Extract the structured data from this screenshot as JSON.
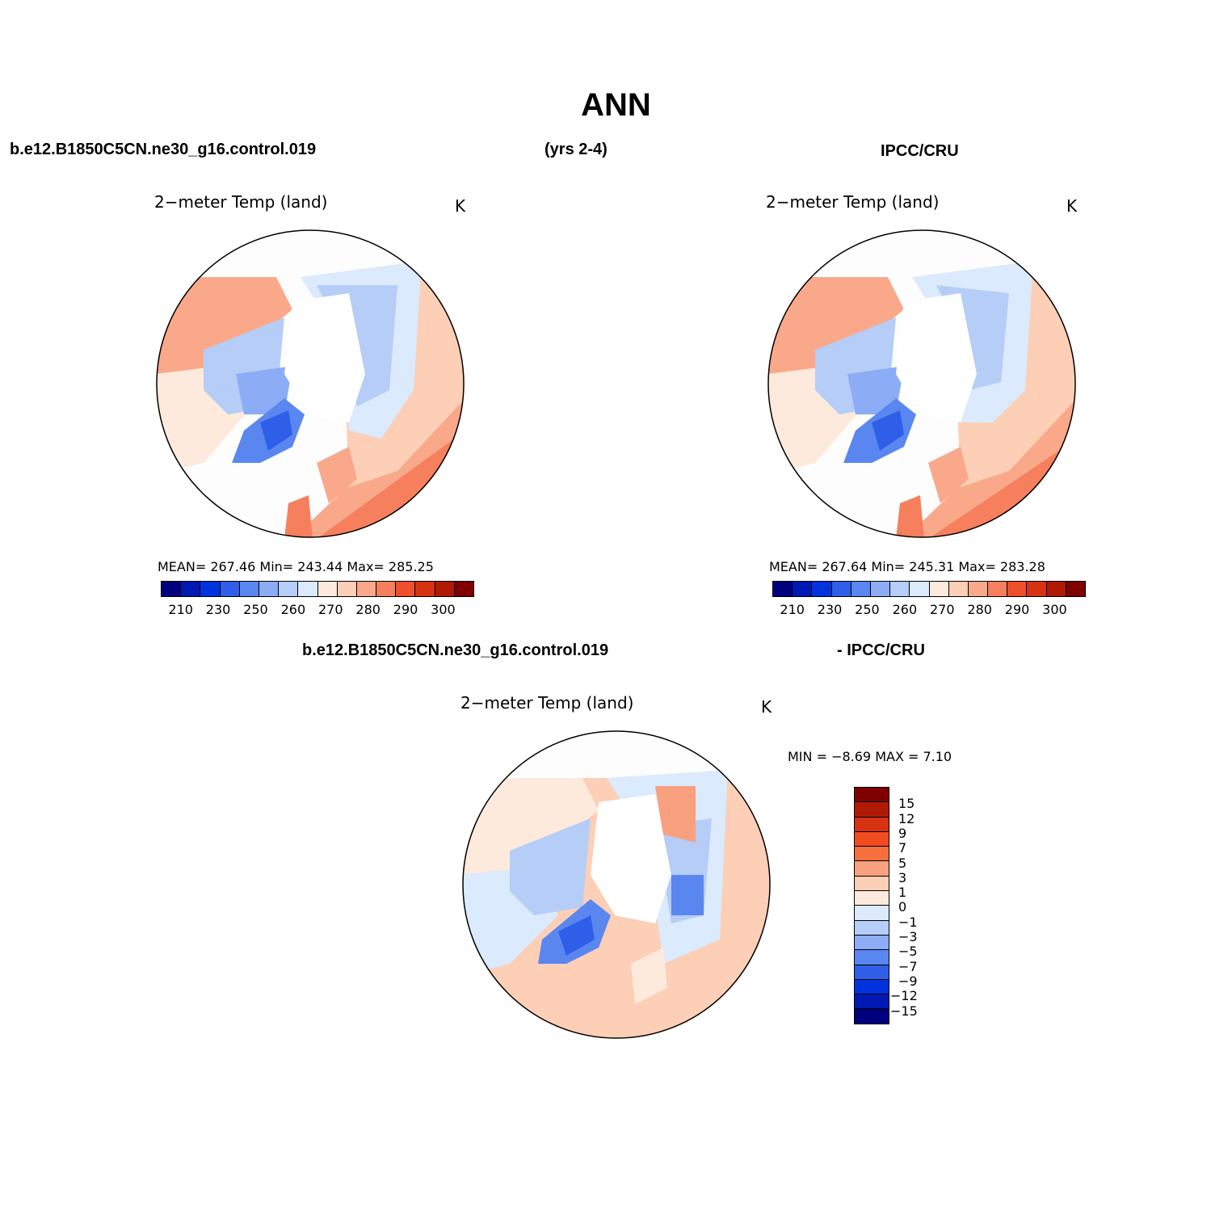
{
  "figure": {
    "title": "ANN",
    "top_left": "b.e12.B1850C5CN.ne30_g16.control.019",
    "top_center": "(yrs 2-4)",
    "top_right": "IPCC/CRU",
    "bottom_left": "b.e12.B1850C5CN.ne30_g16.control.019",
    "bottom_right": "- IPCC/CRU"
  },
  "panels": [
    {
      "id": "model",
      "title": "2−meter Temp (land)",
      "units": "K",
      "stats": "MEAN=  267.46    Min=  243.44    Max=  285.25"
    },
    {
      "id": "obs",
      "title": "2−meter Temp (land)",
      "units": "K",
      "stats": "MEAN=  267.64    Min=  245.31    Max=  283.28"
    },
    {
      "id": "diff",
      "title": "2−meter Temp (land)",
      "units": "K",
      "stats": "MIN  =    −8.69  MAX  =     7.10"
    }
  ],
  "colorbar_abs": {
    "colors": [
      "#00007f",
      "#0019b3",
      "#0033dd",
      "#2f5fe8",
      "#5a86f0",
      "#8cadf5",
      "#b5cdf7",
      "#dbeafc",
      "#feeadc",
      "#fccfb6",
      "#f9a98a",
      "#f67f5e",
      "#ee4f2c",
      "#d63312",
      "#b01a05",
      "#7f0000"
    ],
    "labels": [
      "210",
      "230",
      "250",
      "260",
      "270",
      "280",
      "290",
      "300"
    ]
  },
  "colorbar_diff": {
    "colors": [
      "#7f0000",
      "#b01a05",
      "#d63312",
      "#f24b1f",
      "#f6703e",
      "#f9a07e",
      "#fccfb6",
      "#feeadc",
      "#dbeafc",
      "#b5cdf7",
      "#8cadf5",
      "#5a86f0",
      "#2f5fe8",
      "#0033dd",
      "#0019b3",
      "#00007f"
    ],
    "labels": [
      "15",
      "12",
      "9",
      "7",
      "5",
      "3",
      "1",
      "0",
      "−1",
      "−3",
      "−5",
      "−7",
      "−9",
      "−12",
      "−15"
    ]
  }
}
